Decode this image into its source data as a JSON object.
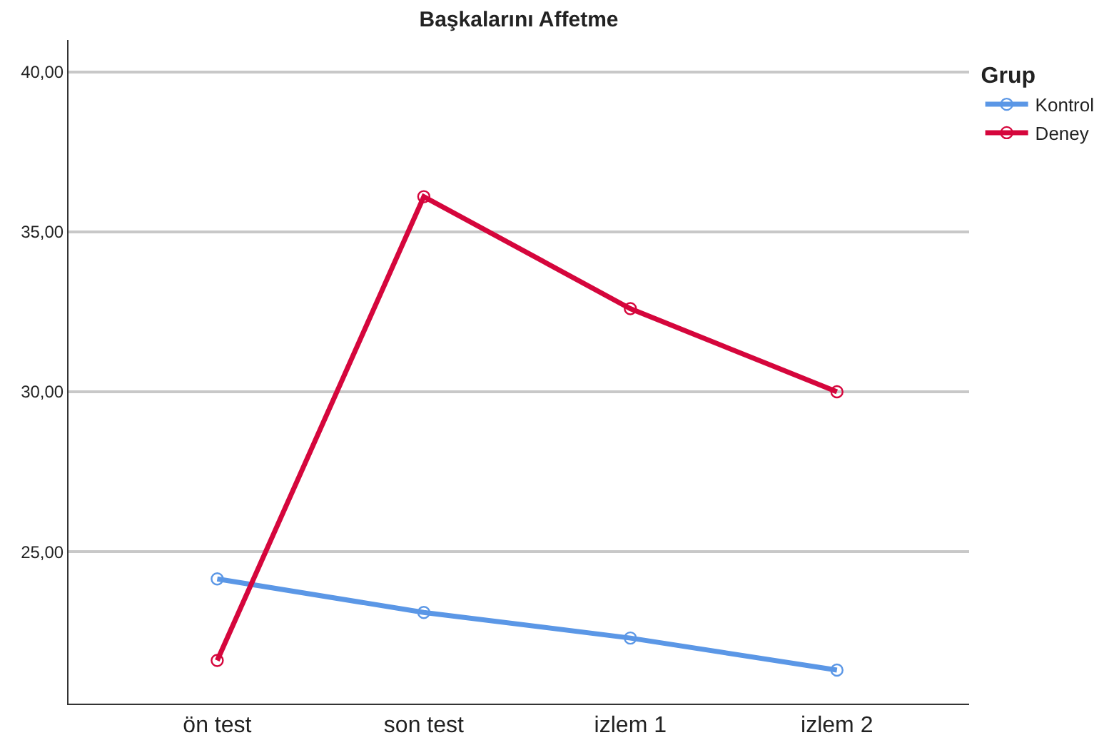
{
  "chart_data": {
    "type": "line",
    "title": "Başkalarını Affetme",
    "legend_title": "Grup",
    "categories": [
      "ön test",
      "son test",
      "izlem 1",
      "izlem 2"
    ],
    "series": [
      {
        "name": "Kontrol",
        "color": "#5b97e6",
        "values": [
          24.15,
          23.1,
          22.3,
          21.3
        ]
      },
      {
        "name": "Deney",
        "color": "#d5063c",
        "values": [
          21.6,
          36.1,
          32.6,
          30.0
        ]
      }
    ],
    "ylim": [
      20.25,
      41.0
    ],
    "yticks": [
      {
        "value": 25,
        "label": "25,00"
      },
      {
        "value": 30,
        "label": "30,00"
      },
      {
        "value": 35,
        "label": "35,00"
      },
      {
        "value": 40,
        "label": "40,00"
      }
    ],
    "grid": "y",
    "legend": "top right",
    "marker": "circle",
    "line_style": "solid"
  }
}
